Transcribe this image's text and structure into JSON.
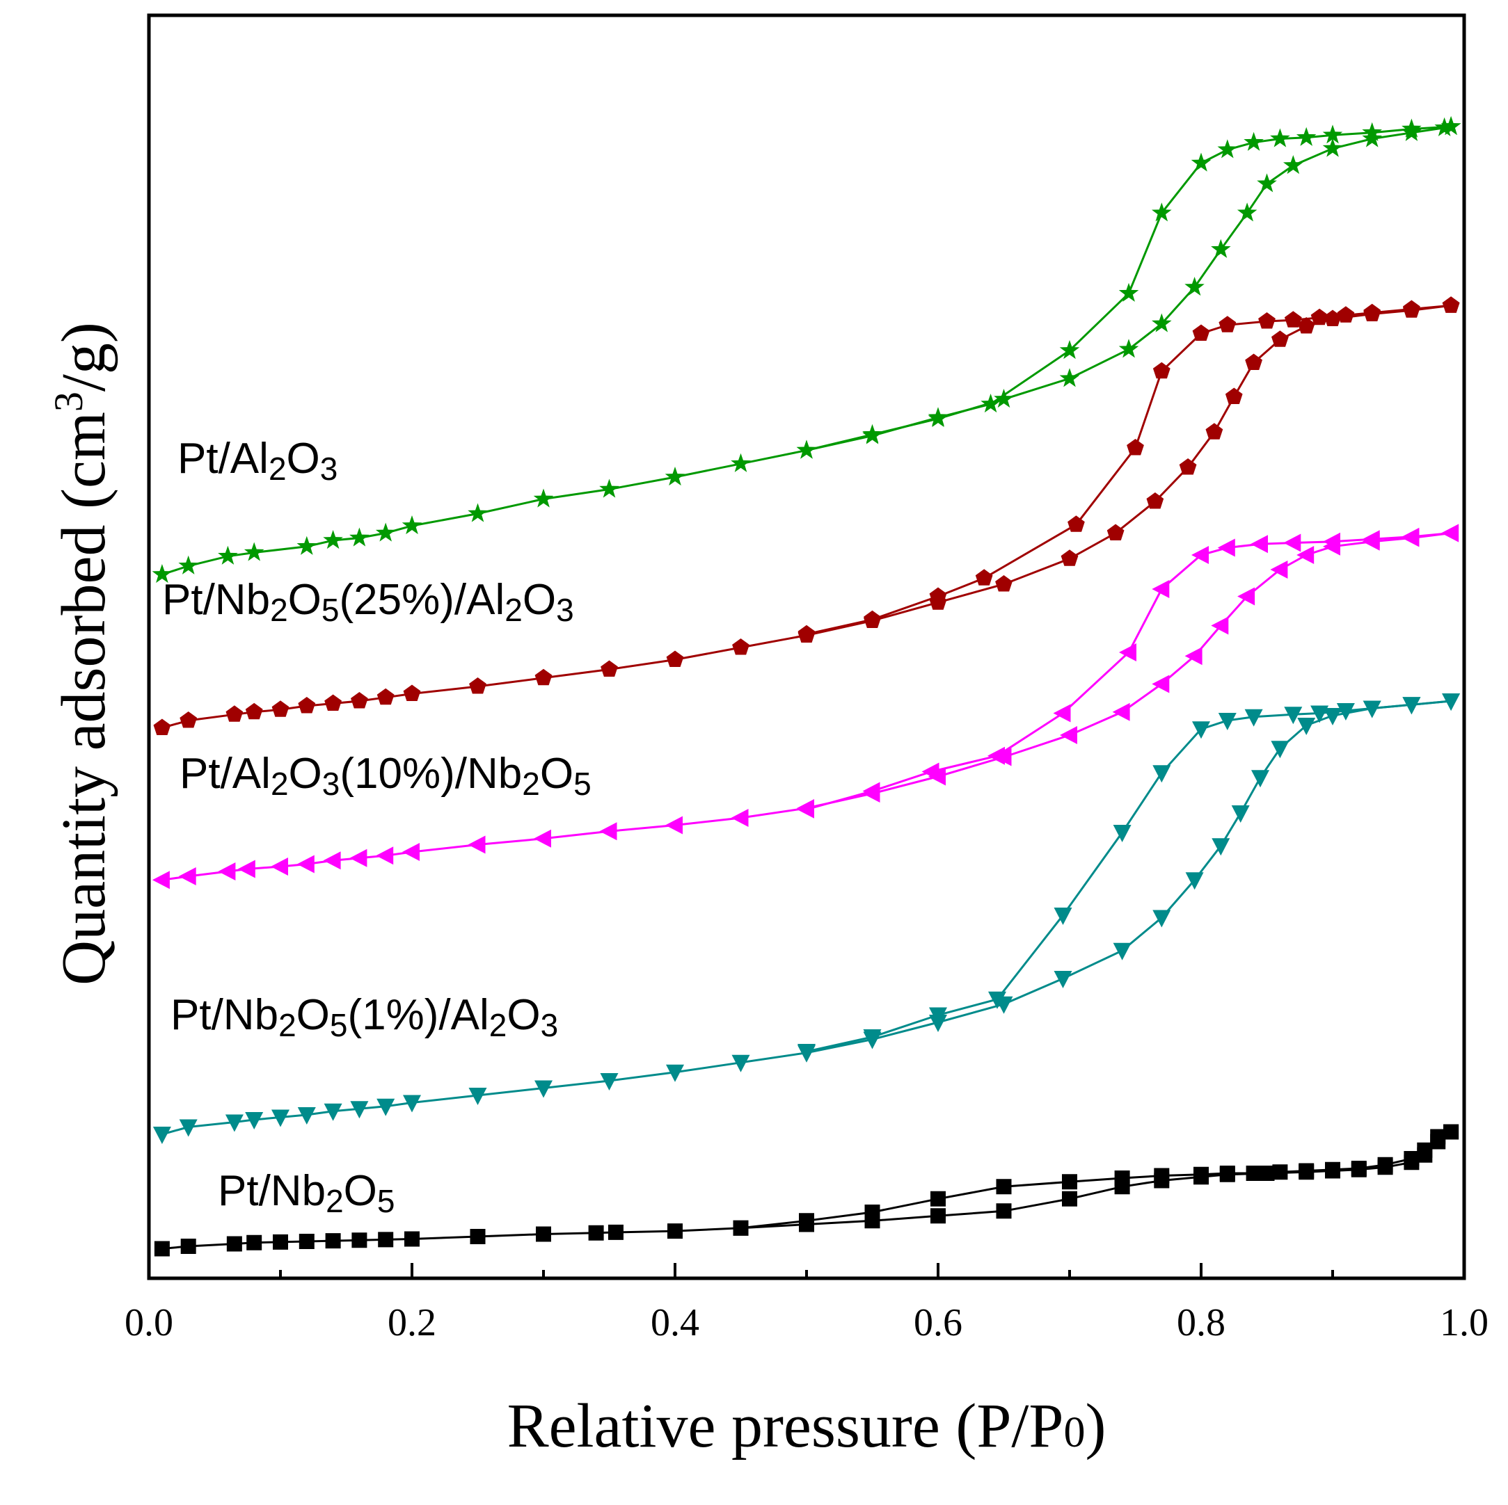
{
  "chart_data": {
    "type": "line",
    "xlabel": "Relative pressure (P/P0)",
    "ylabel": "Quantity adsorbed (cm3/g)",
    "xlim": [
      0.0,
      1.0
    ],
    "ylim": [
      0,
      100
    ],
    "x_ticks": [
      "0.0",
      "0.2",
      "0.4",
      "0.6",
      "0.8",
      "1.0"
    ],
    "y_ticks": [],
    "grid": false,
    "legend": "inline labels beside each curve",
    "series": [
      {
        "name": "Pt/Al2O3",
        "color": "#009900",
        "marker": "star",
        "adsorption": [
          [
            0.01,
            56.8
          ],
          [
            0.03,
            57.5
          ],
          [
            0.06,
            58.3
          ],
          [
            0.08,
            58.6
          ],
          [
            0.12,
            59.1
          ],
          [
            0.14,
            59.6
          ],
          [
            0.16,
            59.8
          ],
          [
            0.18,
            60.2
          ],
          [
            0.2,
            60.8
          ],
          [
            0.25,
            61.8
          ],
          [
            0.3,
            63.0
          ],
          [
            0.35,
            63.8
          ],
          [
            0.4,
            64.8
          ],
          [
            0.45,
            65.9
          ],
          [
            0.5,
            67.0
          ],
          [
            0.55,
            68.3
          ],
          [
            0.6,
            69.6
          ],
          [
            0.65,
            71.2
          ],
          [
            0.7,
            72.9
          ],
          [
            0.745,
            75.3
          ],
          [
            0.77,
            77.4
          ],
          [
            0.795,
            80.4
          ],
          [
            0.815,
            83.5
          ],
          [
            0.835,
            86.5
          ],
          [
            0.85,
            88.9
          ],
          [
            0.87,
            90.4
          ],
          [
            0.9,
            91.8
          ],
          [
            0.93,
            92.6
          ],
          [
            0.96,
            93.1
          ],
          [
            0.985,
            93.5
          ],
          [
            0.99,
            93.6
          ]
        ],
        "desorption": [
          [
            0.99,
            93.6
          ],
          [
            0.96,
            93.4
          ],
          [
            0.93,
            93.1
          ],
          [
            0.9,
            92.9
          ],
          [
            0.88,
            92.7
          ],
          [
            0.86,
            92.6
          ],
          [
            0.84,
            92.3
          ],
          [
            0.82,
            91.7
          ],
          [
            0.8,
            90.6
          ],
          [
            0.77,
            86.5
          ],
          [
            0.745,
            79.9
          ],
          [
            0.7,
            75.2
          ],
          [
            0.64,
            70.8
          ],
          [
            0.6,
            69.7
          ],
          [
            0.55,
            68.2
          ],
          [
            0.5,
            67.0
          ]
        ]
      },
      {
        "name": "Pt/Nb2O5(25%)/Al2O3",
        "color": "#a00000",
        "marker": "pentagon",
        "adsorption": [
          [
            0.01,
            44.2
          ],
          [
            0.03,
            44.8
          ],
          [
            0.065,
            45.3
          ],
          [
            0.08,
            45.5
          ],
          [
            0.1,
            45.7
          ],
          [
            0.12,
            46.0
          ],
          [
            0.14,
            46.2
          ],
          [
            0.16,
            46.4
          ],
          [
            0.18,
            46.7
          ],
          [
            0.2,
            47.0
          ],
          [
            0.25,
            47.6
          ],
          [
            0.3,
            48.3
          ],
          [
            0.35,
            49.0
          ],
          [
            0.4,
            49.8
          ],
          [
            0.45,
            50.8
          ],
          [
            0.5,
            51.8
          ],
          [
            0.55,
            53.0
          ],
          [
            0.6,
            54.5
          ],
          [
            0.65,
            56.0
          ],
          [
            0.7,
            58.1
          ],
          [
            0.735,
            60.2
          ],
          [
            0.765,
            62.8
          ],
          [
            0.79,
            65.6
          ],
          [
            0.81,
            68.5
          ],
          [
            0.825,
            71.4
          ],
          [
            0.84,
            74.2
          ],
          [
            0.86,
            76.1
          ],
          [
            0.88,
            77.2
          ],
          [
            0.9,
            77.8
          ],
          [
            0.93,
            78.2
          ],
          [
            0.96,
            78.5
          ],
          [
            0.99,
            78.9
          ]
        ],
        "desorption": [
          [
            0.99,
            78.9
          ],
          [
            0.96,
            78.6
          ],
          [
            0.93,
            78.3
          ],
          [
            0.91,
            78.1
          ],
          [
            0.89,
            77.9
          ],
          [
            0.87,
            77.7
          ],
          [
            0.85,
            77.6
          ],
          [
            0.82,
            77.3
          ],
          [
            0.8,
            76.6
          ],
          [
            0.77,
            73.5
          ],
          [
            0.75,
            67.2
          ],
          [
            0.705,
            60.9
          ],
          [
            0.635,
            56.5
          ],
          [
            0.6,
            55.0
          ],
          [
            0.55,
            53.1
          ],
          [
            0.5,
            51.9
          ]
        ]
      },
      {
        "name": "Pt/Al2O3(10%)/Nb2O5",
        "color": "#ff00ff",
        "marker": "triangle-left",
        "adsorption": [
          [
            0.01,
            31.7
          ],
          [
            0.03,
            32.0
          ],
          [
            0.06,
            32.4
          ],
          [
            0.075,
            32.6
          ],
          [
            0.1,
            32.8
          ],
          [
            0.12,
            33.0
          ],
          [
            0.14,
            33.3
          ],
          [
            0.16,
            33.5
          ],
          [
            0.18,
            33.7
          ],
          [
            0.2,
            34.0
          ],
          [
            0.25,
            34.6
          ],
          [
            0.3,
            35.1
          ],
          [
            0.35,
            35.7
          ],
          [
            0.4,
            36.2
          ],
          [
            0.45,
            36.8
          ],
          [
            0.5,
            37.6
          ],
          [
            0.55,
            38.8
          ],
          [
            0.6,
            40.2
          ],
          [
            0.65,
            41.8
          ],
          [
            0.7,
            43.6
          ],
          [
            0.74,
            45.5
          ],
          [
            0.77,
            47.8
          ],
          [
            0.795,
            50.1
          ],
          [
            0.815,
            52.6
          ],
          [
            0.835,
            55.0
          ],
          [
            0.86,
            57.2
          ],
          [
            0.88,
            58.4
          ],
          [
            0.9,
            59.1
          ],
          [
            0.93,
            59.5
          ],
          [
            0.96,
            59.8
          ],
          [
            0.99,
            60.2
          ]
        ],
        "desorption": [
          [
            0.99,
            60.2
          ],
          [
            0.96,
            59.9
          ],
          [
            0.93,
            59.7
          ],
          [
            0.9,
            59.5
          ],
          [
            0.87,
            59.4
          ],
          [
            0.845,
            59.3
          ],
          [
            0.82,
            59.0
          ],
          [
            0.8,
            58.4
          ],
          [
            0.77,
            55.6
          ],
          [
            0.745,
            50.4
          ],
          [
            0.695,
            45.4
          ],
          [
            0.645,
            41.9
          ],
          [
            0.595,
            40.6
          ],
          [
            0.55,
            39.0
          ],
          [
            0.5,
            37.5
          ]
        ]
      },
      {
        "name": "Pt/Nb2O5(1%)/Al2O3",
        "color": "#008b8b",
        "marker": "triangle-down",
        "adsorption": [
          [
            0.01,
            10.8
          ],
          [
            0.03,
            11.4
          ],
          [
            0.065,
            11.8
          ],
          [
            0.08,
            12.0
          ],
          [
            0.1,
            12.2
          ],
          [
            0.12,
            12.4
          ],
          [
            0.14,
            12.7
          ],
          [
            0.16,
            12.9
          ],
          [
            0.18,
            13.1
          ],
          [
            0.2,
            13.4
          ],
          [
            0.25,
            14.0
          ],
          [
            0.3,
            14.6
          ],
          [
            0.35,
            15.2
          ],
          [
            0.4,
            15.9
          ],
          [
            0.45,
            16.7
          ],
          [
            0.5,
            17.5
          ],
          [
            0.55,
            18.6
          ],
          [
            0.6,
            20.0
          ],
          [
            0.65,
            21.5
          ],
          [
            0.695,
            23.6
          ],
          [
            0.74,
            25.9
          ],
          [
            0.77,
            28.6
          ],
          [
            0.795,
            31.7
          ],
          [
            0.815,
            34.5
          ],
          [
            0.83,
            37.2
          ],
          [
            0.845,
            40.1
          ],
          [
            0.86,
            42.5
          ],
          [
            0.88,
            44.4
          ],
          [
            0.9,
            45.2
          ],
          [
            0.93,
            45.8
          ],
          [
            0.96,
            46.1
          ],
          [
            0.99,
            46.4
          ]
        ],
        "desorption": [
          [
            0.99,
            46.4
          ],
          [
            0.96,
            46.1
          ],
          [
            0.93,
            45.8
          ],
          [
            0.91,
            45.6
          ],
          [
            0.89,
            45.4
          ],
          [
            0.87,
            45.3
          ],
          [
            0.84,
            45.1
          ],
          [
            0.82,
            44.8
          ],
          [
            0.8,
            44.1
          ],
          [
            0.77,
            40.5
          ],
          [
            0.74,
            35.6
          ],
          [
            0.695,
            28.8
          ],
          [
            0.645,
            21.9
          ],
          [
            0.6,
            20.6
          ],
          [
            0.55,
            18.8
          ],
          [
            0.5,
            17.6
          ]
        ]
      },
      {
        "name": "Pt/Nb2O5",
        "color": "#000000",
        "marker": "square",
        "adsorption": [
          [
            0.01,
            1.4
          ],
          [
            0.03,
            1.6
          ],
          [
            0.065,
            1.8
          ],
          [
            0.08,
            1.9
          ],
          [
            0.1,
            1.95
          ],
          [
            0.12,
            2.0
          ],
          [
            0.14,
            2.05
          ],
          [
            0.16,
            2.1
          ],
          [
            0.18,
            2.15
          ],
          [
            0.2,
            2.2
          ],
          [
            0.25,
            2.4
          ],
          [
            0.3,
            2.6
          ],
          [
            0.34,
            2.7
          ],
          [
            0.355,
            2.75
          ],
          [
            0.4,
            2.85
          ],
          [
            0.45,
            3.1
          ],
          [
            0.5,
            3.4
          ],
          [
            0.55,
            3.7
          ],
          [
            0.6,
            4.1
          ],
          [
            0.65,
            4.5
          ],
          [
            0.7,
            5.5
          ],
          [
            0.74,
            6.5
          ],
          [
            0.77,
            7.0
          ],
          [
            0.8,
            7.3
          ],
          [
            0.82,
            7.5
          ],
          [
            0.85,
            7.6
          ],
          [
            0.88,
            7.7
          ],
          [
            0.9,
            7.8
          ],
          [
            0.92,
            7.9
          ],
          [
            0.94,
            8.1
          ],
          [
            0.96,
            8.5
          ],
          [
            0.97,
            9.1
          ],
          [
            0.98,
            10.2
          ],
          [
            0.99,
            11.0
          ]
        ],
        "desorption": [
          [
            0.99,
            11.0
          ],
          [
            0.98,
            10.6
          ],
          [
            0.97,
            9.5
          ],
          [
            0.96,
            8.8
          ],
          [
            0.94,
            8.3
          ],
          [
            0.92,
            8.0
          ],
          [
            0.9,
            7.9
          ],
          [
            0.88,
            7.8
          ],
          [
            0.86,
            7.7
          ],
          [
            0.84,
            7.6
          ],
          [
            0.82,
            7.6
          ],
          [
            0.8,
            7.5
          ],
          [
            0.77,
            7.4
          ],
          [
            0.74,
            7.2
          ],
          [
            0.7,
            6.9
          ],
          [
            0.65,
            6.5
          ],
          [
            0.6,
            5.5
          ],
          [
            0.55,
            4.4
          ],
          [
            0.5,
            3.7
          ],
          [
            0.45,
            3.1
          ]
        ]
      }
    ]
  },
  "labels": {
    "al2o3": {
      "main_1": "Pt/Al",
      "sub_1": "2",
      "main_2": "O",
      "sub_2": "3",
      "main_3": ""
    },
    "nb25": {
      "main_1": "Pt/Nb",
      "sub_1": "2",
      "main_2": "O",
      "sub_2": "5",
      "main_3": "(25%)/Al",
      "sub_3": "2",
      "main_4": "O",
      "sub_4": "3"
    },
    "al10": {
      "main_1": "Pt/Al",
      "sub_1": "2",
      "main_2": "O",
      "sub_2": "3",
      "main_3": "(10%)/Nb",
      "sub_3": "2",
      "main_4": "O",
      "sub_4": "5"
    },
    "nb1": {
      "main_1": "Pt/Nb",
      "sub_1": "2",
      "main_2": "O",
      "sub_2": "5",
      "main_3": "(1%)/Al",
      "sub_3": "2",
      "main_4": "O",
      "sub_4": "3"
    },
    "nb": {
      "main_1": "Pt/Nb",
      "sub_1": "2",
      "main_2": "O",
      "sub_2": "5"
    }
  },
  "axis_text": {
    "x_title_main": "Relative pressure (P/P",
    "x_title_sub": "0",
    "x_title_end": ")",
    "y_title_main": "Quantity adsorbed (cm",
    "y_title_sup": "3",
    "y_title_end": "/g)"
  }
}
